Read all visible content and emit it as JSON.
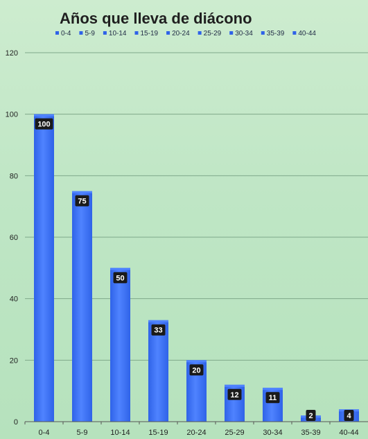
{
  "chart_data": {
    "type": "bar",
    "title": "Años que lleva de diácono",
    "categories": [
      "0-4",
      "5-9",
      "10-14",
      "15-19",
      "20-24",
      "25-29",
      "30-34",
      "35-39",
      "40-44"
    ],
    "series": [
      {
        "values": [
          100,
          75,
          50,
          33,
          20,
          12,
          11,
          2,
          4
        ]
      }
    ],
    "data_labels": [
      "100",
      "75",
      "50",
      "33",
      "20",
      "12",
      "11",
      "2",
      "4"
    ],
    "legend": {
      "placement": "top",
      "entries": [
        "0-4",
        "5-9",
        "10-14",
        "15-19",
        "20-24",
        "25-29",
        "30-34",
        "35-39",
        "40-44"
      ]
    },
    "xlabel": "",
    "ylabel": "",
    "ylim": [
      0,
      120
    ],
    "yticks": [
      "0",
      "20",
      "40",
      "60",
      "80",
      "100",
      "120"
    ],
    "grid": true,
    "colors": {
      "bar": "#2f63e8",
      "bar_top": "#4f83ff",
      "label_bg": "#1a1a1a",
      "gridline": "#7fa88a"
    }
  }
}
